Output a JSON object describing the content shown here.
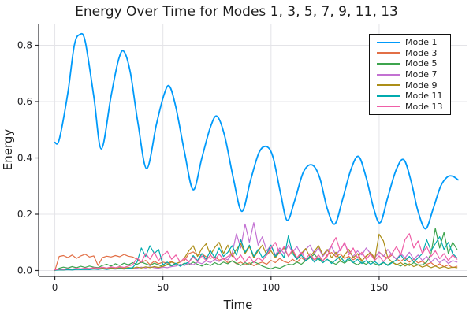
{
  "chart_data": {
    "type": "line",
    "title": "Energy Over Time for Modes 1, 3, 5, 7, 9, 11, 13",
    "xlabel": "Time",
    "ylabel": "Energy",
    "xlim": [
      -7.5,
      190.5
    ],
    "ylim": [
      -0.021,
      0.877
    ],
    "grid": true,
    "legend_position": "top-right",
    "x_ticks": [
      0,
      50,
      100,
      150
    ],
    "x_tick_labels": [
      "0",
      "50",
      "100",
      "150"
    ],
    "y_ticks": [
      0.0,
      0.2,
      0.4,
      0.6,
      0.8
    ],
    "y_tick_labels": [
      "0.0",
      "0.2",
      "0.4",
      "0.6",
      "0.8"
    ],
    "series": [
      {
        "name": "Mode 1",
        "color": "#009AFA",
        "width": 1.8,
        "smooth": true,
        "points": [
          [
            0,
            0.455
          ],
          [
            2,
            0.465
          ],
          [
            6,
            0.63
          ],
          [
            9,
            0.8
          ],
          [
            11.5,
            0.838
          ],
          [
            14,
            0.815
          ],
          [
            18,
            0.62
          ],
          [
            21.5,
            0.432
          ],
          [
            26,
            0.62
          ],
          [
            29.5,
            0.75
          ],
          [
            32,
            0.778
          ],
          [
            35,
            0.7
          ],
          [
            38.5,
            0.52
          ],
          [
            42.5,
            0.362
          ],
          [
            47,
            0.52
          ],
          [
            50.5,
            0.625
          ],
          [
            53,
            0.655
          ],
          [
            56,
            0.58
          ],
          [
            60,
            0.42
          ],
          [
            64,
            0.287
          ],
          [
            68,
            0.4
          ],
          [
            72,
            0.51
          ],
          [
            75,
            0.548
          ],
          [
            78.5,
            0.48
          ],
          [
            82.5,
            0.33
          ],
          [
            86.5,
            0.21
          ],
          [
            90.5,
            0.32
          ],
          [
            94.5,
            0.42
          ],
          [
            98,
            0.44
          ],
          [
            101,
            0.4
          ],
          [
            104.5,
            0.27
          ],
          [
            107.5,
            0.178
          ],
          [
            111,
            0.25
          ],
          [
            115,
            0.35
          ],
          [
            119,
            0.375
          ],
          [
            122.5,
            0.33
          ],
          [
            126,
            0.22
          ],
          [
            129.5,
            0.165
          ],
          [
            133,
            0.25
          ],
          [
            137,
            0.36
          ],
          [
            140.5,
            0.405
          ],
          [
            144,
            0.33
          ],
          [
            147.5,
            0.22
          ],
          [
            150.5,
            0.17
          ],
          [
            154,
            0.26
          ],
          [
            158,
            0.36
          ],
          [
            161.5,
            0.393
          ],
          [
            165,
            0.31
          ],
          [
            168,
            0.21
          ],
          [
            171.5,
            0.148
          ],
          [
            175,
            0.22
          ],
          [
            178.5,
            0.3
          ],
          [
            181.5,
            0.332
          ],
          [
            184,
            0.335
          ],
          [
            186.5,
            0.322
          ]
        ]
      },
      {
        "name": "Mode 3",
        "color": "#E26F46",
        "width": 1.2,
        "t0": 0,
        "dt": 2,
        "values": [
          0.0,
          0.05,
          0.053,
          0.046,
          0.055,
          0.043,
          0.052,
          0.058,
          0.048,
          0.052,
          0.018,
          0.046,
          0.051,
          0.048,
          0.053,
          0.049,
          0.057,
          0.051,
          0.048,
          0.04,
          0.028,
          0.036,
          0.021,
          0.033,
          0.024,
          0.03,
          0.026,
          0.032,
          0.024,
          0.031,
          0.036,
          0.06,
          0.066,
          0.054,
          0.059,
          0.049,
          0.043,
          0.049,
          0.037,
          0.042,
          0.028,
          0.035,
          0.024,
          0.03,
          0.02,
          0.027,
          0.017,
          0.025,
          0.03,
          0.022,
          0.036,
          0.028,
          0.043,
          0.032,
          0.027,
          0.04,
          0.029,
          0.046,
          0.034,
          0.051,
          0.038,
          0.046,
          0.034,
          0.056,
          0.064,
          0.049,
          0.059,
          0.043,
          0.05,
          0.038,
          0.047,
          0.034,
          0.052,
          0.062,
          0.047,
          0.066,
          0.052,
          0.044,
          0.055,
          0.04,
          0.033,
          0.044,
          0.03,
          0.04,
          0.027,
          0.033,
          0.022,
          0.028,
          0.016,
          0.024,
          0.013,
          0.02,
          0.01,
          0.015
        ]
      },
      {
        "name": "Mode 5",
        "color": "#3DA44E",
        "width": 1.2,
        "t0": 0,
        "dt": 2,
        "values": [
          0.0,
          0.008,
          0.012,
          0.009,
          0.014,
          0.01,
          0.015,
          0.011,
          0.016,
          0.012,
          0.01,
          0.018,
          0.022,
          0.016,
          0.024,
          0.018,
          0.026,
          0.02,
          0.028,
          0.022,
          0.03,
          0.024,
          0.018,
          0.026,
          0.02,
          0.014,
          0.022,
          0.016,
          0.024,
          0.018,
          0.026,
          0.02,
          0.03,
          0.022,
          0.016,
          0.024,
          0.018,
          0.028,
          0.02,
          0.03,
          0.024,
          0.034,
          0.026,
          0.018,
          0.028,
          0.02,
          0.032,
          0.024,
          0.016,
          0.01,
          0.006,
          0.012,
          0.008,
          0.016,
          0.022,
          0.02,
          0.03,
          0.022,
          0.035,
          0.045,
          0.058,
          0.04,
          0.028,
          0.04,
          0.03,
          0.022,
          0.034,
          0.026,
          0.038,
          0.028,
          0.02,
          0.03,
          0.022,
          0.034,
          0.024,
          0.018,
          0.028,
          0.02,
          0.03,
          0.022,
          0.016,
          0.026,
          0.018,
          0.028,
          0.02,
          0.02,
          0.03,
          0.06,
          0.15,
          0.08,
          0.135,
          0.06,
          0.1,
          0.075
        ]
      },
      {
        "name": "Mode 7",
        "color": "#C371D2",
        "width": 1.2,
        "t0": 0,
        "dt": 2,
        "values": [
          0.002,
          0.004,
          0.003,
          0.005,
          0.004,
          0.006,
          0.004,
          0.007,
          0.005,
          0.008,
          0.006,
          0.009,
          0.007,
          0.01,
          0.008,
          0.006,
          0.009,
          0.007,
          0.01,
          0.008,
          0.012,
          0.009,
          0.013,
          0.01,
          0.008,
          0.012,
          0.01,
          0.014,
          0.016,
          0.022,
          0.018,
          0.026,
          0.02,
          0.03,
          0.024,
          0.034,
          0.028,
          0.04,
          0.032,
          0.045,
          0.038,
          0.06,
          0.13,
          0.08,
          0.165,
          0.1,
          0.17,
          0.09,
          0.12,
          0.07,
          0.09,
          0.055,
          0.08,
          0.06,
          0.09,
          0.065,
          0.085,
          0.055,
          0.075,
          0.09,
          0.06,
          0.08,
          0.05,
          0.07,
          0.085,
          0.055,
          0.075,
          0.095,
          0.065,
          0.05,
          0.07,
          0.055,
          0.08,
          0.06,
          0.045,
          0.065,
          0.05,
          0.075,
          0.055,
          0.04,
          0.06,
          0.045,
          0.065,
          0.04,
          0.055,
          0.035,
          0.05,
          0.03,
          0.045,
          0.028,
          0.04,
          0.025,
          0.035,
          0.03
        ]
      },
      {
        "name": "Mode 9",
        "color": "#AC8E18",
        "width": 1.2,
        "t0": 0,
        "dt": 2,
        "values": [
          0.001,
          0.003,
          0.002,
          0.004,
          0.003,
          0.005,
          0.004,
          0.006,
          0.004,
          0.007,
          0.005,
          0.008,
          0.006,
          0.009,
          0.007,
          0.01,
          0.008,
          0.011,
          0.008,
          0.012,
          0.009,
          0.013,
          0.01,
          0.014,
          0.011,
          0.015,
          0.02,
          0.03,
          0.024,
          0.03,
          0.045,
          0.07,
          0.088,
          0.05,
          0.078,
          0.095,
          0.055,
          0.082,
          0.1,
          0.06,
          0.09,
          0.05,
          0.075,
          0.095,
          0.06,
          0.085,
          0.045,
          0.07,
          0.09,
          0.055,
          0.07,
          0.045,
          0.065,
          0.08,
          0.05,
          0.07,
          0.04,
          0.06,
          0.078,
          0.048,
          0.068,
          0.088,
          0.055,
          0.075,
          0.045,
          0.065,
          0.035,
          0.055,
          0.075,
          0.045,
          0.06,
          0.035,
          0.05,
          0.065,
          0.04,
          0.129,
          0.105,
          0.045,
          0.03,
          0.02,
          0.028,
          0.016,
          0.024,
          0.014,
          0.02,
          0.012,
          0.018,
          0.01,
          0.016,
          0.009,
          0.014,
          0.008,
          0.012,
          0.01
        ]
      },
      {
        "name": "Mode 11",
        "color": "#00AAAE",
        "width": 1.2,
        "t0": 0,
        "dt": 2,
        "values": [
          0.001,
          0.002,
          0.002,
          0.003,
          0.002,
          0.004,
          0.003,
          0.004,
          0.003,
          0.005,
          0.004,
          0.006,
          0.004,
          0.006,
          0.005,
          0.007,
          0.005,
          0.008,
          0.01,
          0.03,
          0.08,
          0.05,
          0.088,
          0.06,
          0.075,
          0.02,
          0.03,
          0.018,
          0.026,
          0.015,
          0.024,
          0.03,
          0.053,
          0.035,
          0.06,
          0.04,
          0.07,
          0.045,
          0.08,
          0.05,
          0.065,
          0.088,
          0.055,
          0.109,
          0.065,
          0.09,
          0.05,
          0.075,
          0.045,
          0.06,
          0.09,
          0.05,
          0.07,
          0.045,
          0.123,
          0.06,
          0.04,
          0.055,
          0.035,
          0.05,
          0.03,
          0.045,
          0.028,
          0.04,
          0.025,
          0.038,
          0.05,
          0.03,
          0.045,
          0.028,
          0.04,
          0.025,
          0.035,
          0.022,
          0.032,
          0.02,
          0.03,
          0.018,
          0.028,
          0.038,
          0.055,
          0.035,
          0.05,
          0.03,
          0.045,
          0.06,
          0.109,
          0.07,
          0.095,
          0.12,
          0.075,
          0.1,
          0.06,
          0.045
        ]
      },
      {
        "name": "Mode 13",
        "color": "#EF5FA7",
        "width": 1.2,
        "t0": 0,
        "dt": 2,
        "values": [
          0.002,
          0.005,
          0.004,
          0.007,
          0.005,
          0.008,
          0.006,
          0.009,
          0.007,
          0.01,
          0.008,
          0.012,
          0.009,
          0.013,
          0.01,
          0.014,
          0.011,
          0.016,
          0.02,
          0.045,
          0.03,
          0.06,
          0.04,
          0.065,
          0.035,
          0.055,
          0.068,
          0.04,
          0.055,
          0.03,
          0.045,
          0.03,
          0.048,
          0.032,
          0.052,
          0.035,
          0.055,
          0.038,
          0.058,
          0.04,
          0.05,
          0.06,
          0.035,
          0.055,
          0.03,
          0.05,
          0.028,
          0.045,
          0.035,
          0.055,
          0.08,
          0.1,
          0.06,
          0.085,
          0.05,
          0.075,
          0.045,
          0.065,
          0.04,
          0.06,
          0.038,
          0.055,
          0.035,
          0.05,
          0.09,
          0.117,
          0.07,
          0.1,
          0.055,
          0.08,
          0.045,
          0.065,
          0.04,
          0.058,
          0.036,
          0.052,
          0.032,
          0.048,
          0.06,
          0.085,
          0.055,
          0.11,
          0.131,
          0.08,
          0.105,
          0.06,
          0.085,
          0.05,
          0.07,
          0.042,
          0.06,
          0.035,
          0.055,
          0.04
        ]
      }
    ]
  }
}
